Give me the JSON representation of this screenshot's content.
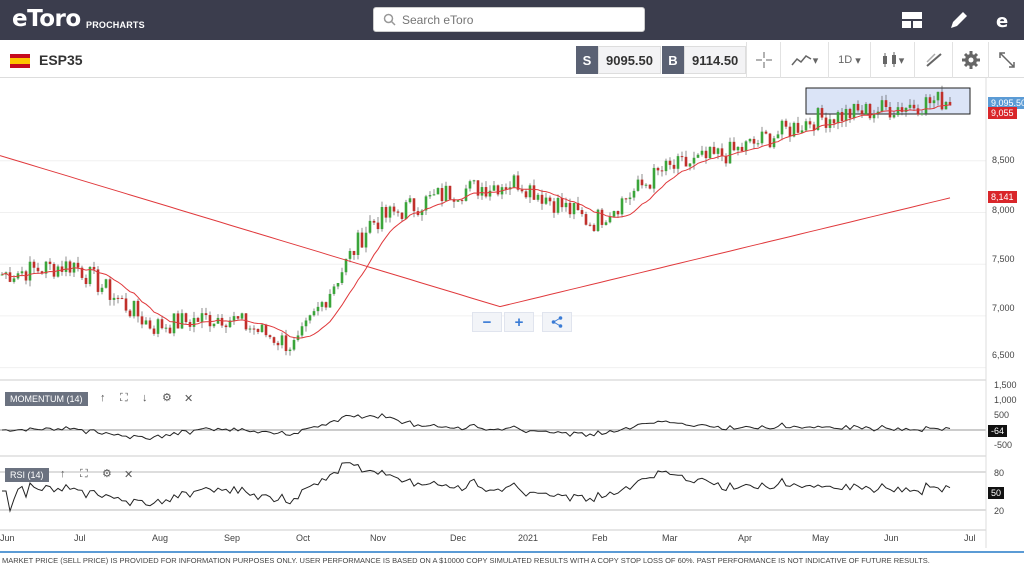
{
  "app": {
    "logo": "eToro",
    "logo_sub": "PROCHARTS"
  },
  "search": {
    "placeholder": "Search eToro"
  },
  "instrument": {
    "symbol": "ESP35"
  },
  "prices": {
    "sell_label": "S",
    "sell_value": "9095.50",
    "buy_label": "B",
    "buy_value": "9114.50"
  },
  "toolbar": {
    "interval": "1D"
  },
  "zoom": {
    "minus": "−",
    "plus": "+"
  },
  "y_axis_main": [
    "9,095.50",
    "9,055",
    "8,500",
    "8,141",
    "8,000",
    "7,500",
    "7,000",
    "6,500"
  ],
  "momentum": {
    "label": "MOMENTUM (14)",
    "ticks": [
      "1,500",
      "1,000",
      "500",
      "-64",
      "-500"
    ]
  },
  "rsi": {
    "label": "RSI (14)",
    "ticks": [
      "80",
      "50",
      "20"
    ]
  },
  "x_axis": [
    "Jun",
    "Jul",
    "Aug",
    "Sep",
    "Oct",
    "Nov",
    "Dec",
    "2021",
    "Feb",
    "Mar",
    "Apr",
    "May",
    "Jun",
    "Jul"
  ],
  "colors": {
    "up": "#3aa53a",
    "down": "#c0302b",
    "ma": "#e0393c",
    "bg_top": "#3b3d4d",
    "accent": "#3a7bd5"
  },
  "disclaimer": "MARKET PRICE (SELL PRICE) IS PROVIDED FOR INFORMATION PURPOSES ONLY. USER PERFORMANCE IS BASED ON A $10000 COPY SIMULATED RESULTS WITH A COPY STOP LOSS OF 60%. PAST PERFORMANCE IS NOT INDICATIVE OF FUTURE RESULTS.",
  "chart_data": {
    "type": "candlestick",
    "series": [
      {
        "name": "ESP35",
        "x": [
          "Jun",
          "Jul",
          "Aug",
          "Sep",
          "Oct",
          "Nov",
          "Dec",
          "2021",
          "Feb",
          "Mar",
          "Apr",
          "May",
          "Jun"
        ],
        "values": [
          7400,
          7500,
          6900,
          7000,
          6700,
          7900,
          8200,
          8300,
          7900,
          8400,
          8600,
          8900,
          9095
        ]
      }
    ],
    "ylim": [
      6400,
      9300
    ]
  }
}
